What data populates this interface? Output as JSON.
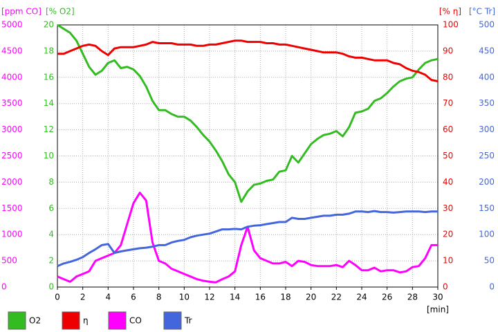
{
  "chart_data": {
    "type": "line",
    "x": [
      0,
      0.5,
      1,
      1.5,
      2,
      2.5,
      3,
      3.5,
      4,
      4.5,
      5,
      5.5,
      6,
      6.5,
      7,
      7.5,
      8,
      8.5,
      9,
      9.5,
      10,
      10.5,
      11,
      11.5,
      12,
      12.5,
      13,
      13.5,
      14,
      14.5,
      15,
      15.5,
      16,
      16.5,
      17,
      17.5,
      18,
      18.5,
      19,
      19.5,
      20,
      20.5,
      21,
      21.5,
      22,
      22.5,
      23,
      23.5,
      24,
      24.5,
      25,
      25.5,
      26,
      26.5,
      27,
      27.5,
      28,
      28.5,
      29,
      29.5,
      30
    ],
    "xlim": [
      0,
      30
    ],
    "xticks": [
      0,
      2,
      4,
      6,
      8,
      10,
      12,
      14,
      16,
      18,
      20,
      22,
      24,
      26,
      28,
      30
    ],
    "xlabel": "[min]",
    "grid": true,
    "axes": [
      {
        "label": "[ppm CO]",
        "side": "left",
        "color": "#ff00ff",
        "lim": [
          0,
          5000
        ],
        "ticks": [
          0,
          500,
          1000,
          1500,
          2000,
          2500,
          3000,
          3500,
          4000,
          4500,
          5000
        ]
      },
      {
        "label": "[% O2]",
        "side": "left",
        "color": "#33bb22",
        "lim": [
          0,
          20
        ],
        "ticks": [
          0,
          2,
          4,
          6,
          8,
          10,
          12,
          14,
          16,
          18,
          20
        ]
      },
      {
        "label": "[% η]",
        "side": "right",
        "color": "#ee0000",
        "lim": [
          0,
          100
        ],
        "ticks": [
          0,
          10,
          20,
          30,
          40,
          50,
          60,
          70,
          80,
          90,
          100
        ]
      },
      {
        "label": "[°C Tr]",
        "side": "right",
        "color": "#4466dd",
        "lim": [
          0,
          500
        ],
        "ticks": [
          0,
          50,
          100,
          150,
          200,
          250,
          300,
          350,
          400,
          450,
          500
        ]
      }
    ],
    "series": [
      {
        "name": "O2",
        "color": "#33bb22",
        "axis": 1,
        "values": [
          20,
          19.7,
          19.4,
          18.8,
          17.8,
          16.8,
          16.2,
          16.5,
          17.1,
          17.3,
          16.7,
          16.8,
          16.6,
          16.1,
          15.3,
          14.2,
          13.5,
          13.5,
          13.2,
          13.0,
          13.0,
          12.7,
          12.2,
          11.6,
          11.1,
          10.4,
          9.6,
          8.6,
          8.0,
          6.5,
          7.3,
          7.8,
          7.9,
          8.1,
          8.2,
          8.8,
          8.9,
          10.0,
          9.5,
          10.2,
          10.9,
          11.3,
          11.6,
          11.7,
          11.9,
          11.5,
          12.2,
          13.3,
          13.4,
          13.6,
          14.2,
          14.4,
          14.8,
          15.3,
          15.7,
          15.9,
          16.0,
          16.6,
          17.1,
          17.3,
          17.4
        ]
      },
      {
        "name": "η",
        "color": "#ee0000",
        "axis": 2,
        "values": [
          89,
          89,
          90,
          91,
          92,
          92.5,
          92,
          90,
          88.5,
          91,
          91.5,
          91.5,
          91.5,
          92,
          92.5,
          93.5,
          93,
          93,
          93,
          92.5,
          92.5,
          92.5,
          92,
          92,
          92.5,
          92.5,
          93,
          93.5,
          94,
          94,
          93.5,
          93.5,
          93.5,
          93,
          93,
          92.5,
          92.5,
          92,
          91.5,
          91,
          90.5,
          90,
          89.5,
          89.5,
          89.5,
          89,
          88,
          87.5,
          87.5,
          87,
          86.5,
          86.5,
          86.5,
          85.5,
          85,
          83.5,
          82.5,
          82,
          81,
          79,
          78.5
        ]
      },
      {
        "name": "CO",
        "color": "#ff00ff",
        "axis": 0,
        "values": [
          200,
          150,
          100,
          200,
          250,
          300,
          500,
          550,
          600,
          650,
          800,
          1200,
          1600,
          1800,
          1650,
          850,
          500,
          450,
          350,
          300,
          250,
          200,
          150,
          120,
          100,
          90,
          150,
          200,
          300,
          800,
          1150,
          700,
          550,
          500,
          450,
          450,
          480,
          400,
          500,
          480,
          420,
          400,
          400,
          400,
          420,
          380,
          500,
          420,
          320,
          320,
          370,
          300,
          320,
          320,
          280,
          300,
          380,
          400,
          550,
          800,
          800
        ]
      },
      {
        "name": "Tr",
        "color": "#4466dd",
        "axis": 3,
        "values": [
          40,
          45,
          48,
          52,
          57,
          65,
          72,
          80,
          82,
          65,
          68,
          70,
          72,
          74,
          75,
          77,
          80,
          80,
          85,
          88,
          90,
          95,
          98,
          100,
          102,
          106,
          110,
          110,
          111,
          110,
          115,
          117,
          118,
          120,
          122,
          124,
          124,
          132,
          130,
          130,
          132,
          134,
          136,
          136,
          138,
          138,
          140,
          144,
          144,
          143,
          145,
          143,
          143,
          142,
          143,
          144,
          144,
          144,
          143,
          144,
          144
        ]
      }
    ]
  }
}
